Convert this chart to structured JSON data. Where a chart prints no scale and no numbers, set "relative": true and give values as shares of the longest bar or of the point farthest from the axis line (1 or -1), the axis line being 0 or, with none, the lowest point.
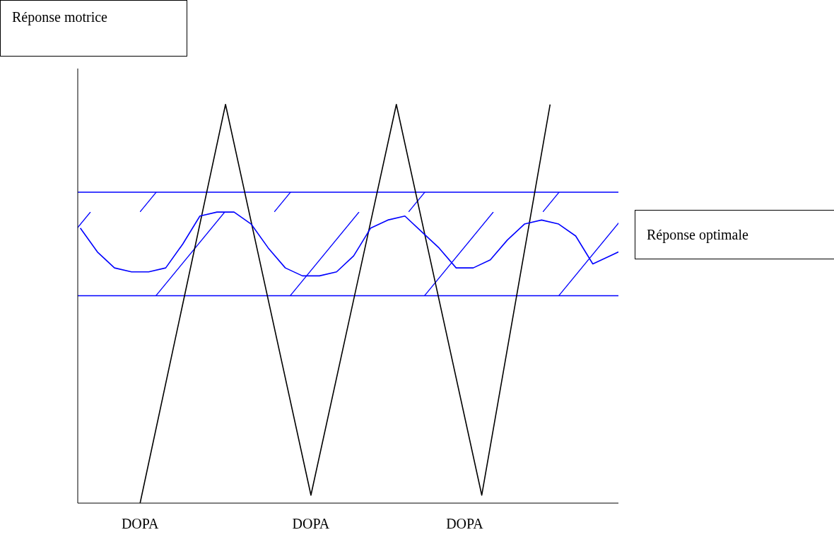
{
  "chart_data": {
    "type": "line",
    "relative": true,
    "annotations": [
      "Réponse motrice"
    ],
    "categories": [
      null,
      null,
      null,
      null,
      null,
      null,
      null,
      "DOPA",
      null,
      null,
      null,
      null,
      null,
      null,
      null,
      null,
      null,
      null,
      null,
      null,
      null,
      null,
      null,
      null,
      null,
      null,
      null,
      "DOPA",
      null,
      null,
      null,
      null,
      null,
      null,
      null,
      null,
      null,
      null,
      null,
      null,
      null,
      null,
      null,
      null,
      null,
      "DOPA",
      null,
      null,
      null,
      null,
      null,
      null,
      null,
      null,
      null,
      null,
      null,
      null,
      null,
      null,
      null,
      null,
      null,
      null
    ],
    "series": [
      {
        "color": "#000000",
        "values": [
          null,
          null,
          null,
          null,
          null,
          null,
          null,
          0,
          null,
          null,
          null,
          null,
          null,
          null,
          null,
          null,
          null,
          1,
          null,
          null,
          null,
          null,
          null,
          null,
          null,
          null,
          null,
          0.02,
          null,
          null,
          null,
          null,
          null,
          null,
          null,
          null,
          null,
          1,
          null,
          null,
          null,
          null,
          null,
          null,
          null,
          null,
          null,
          0.02,
          null,
          null,
          null,
          null,
          null,
          null,
          null,
          1,
          null,
          null,
          null,
          null,
          null,
          null,
          null,
          null
        ]
      },
      {
        "color": "#0000ff",
        "values": [
          0.69,
          null,
          0.63,
          null,
          0.59,
          null,
          0.58,
          null,
          0.58,
          null,
          0.59,
          null,
          0.65,
          null,
          0.72,
          null,
          0.73,
          null,
          0.73,
          null,
          0.7,
          null,
          0.64,
          null,
          0.59,
          null,
          0.57,
          null,
          0.57,
          null,
          0.58,
          null,
          0.62,
          null,
          0.69,
          null,
          0.71,
          null,
          0.72,
          null,
          0.68,
          null,
          0.64,
          null,
          0.59,
          null,
          0.59,
          null,
          0.61,
          null,
          0.66,
          null,
          0.7,
          null,
          0.71,
          null,
          0.7,
          null,
          0.67,
          null,
          0.6,
          null,
          0.62,
          0.63
        ]
      }
    ],
    "ref_lines": [
      {
        "axis": "y",
        "value": 0.52,
        "color": "#0000ff"
      },
      {
        "axis": "y",
        "value": 0.78,
        "color": "#0000ff"
      }
    ],
    "bands": [
      {
        "axis": "y",
        "from": 0.52,
        "to": 0.78,
        "label": "Réponse optimale",
        "color": "#0000ff"
      }
    ]
  }
}
